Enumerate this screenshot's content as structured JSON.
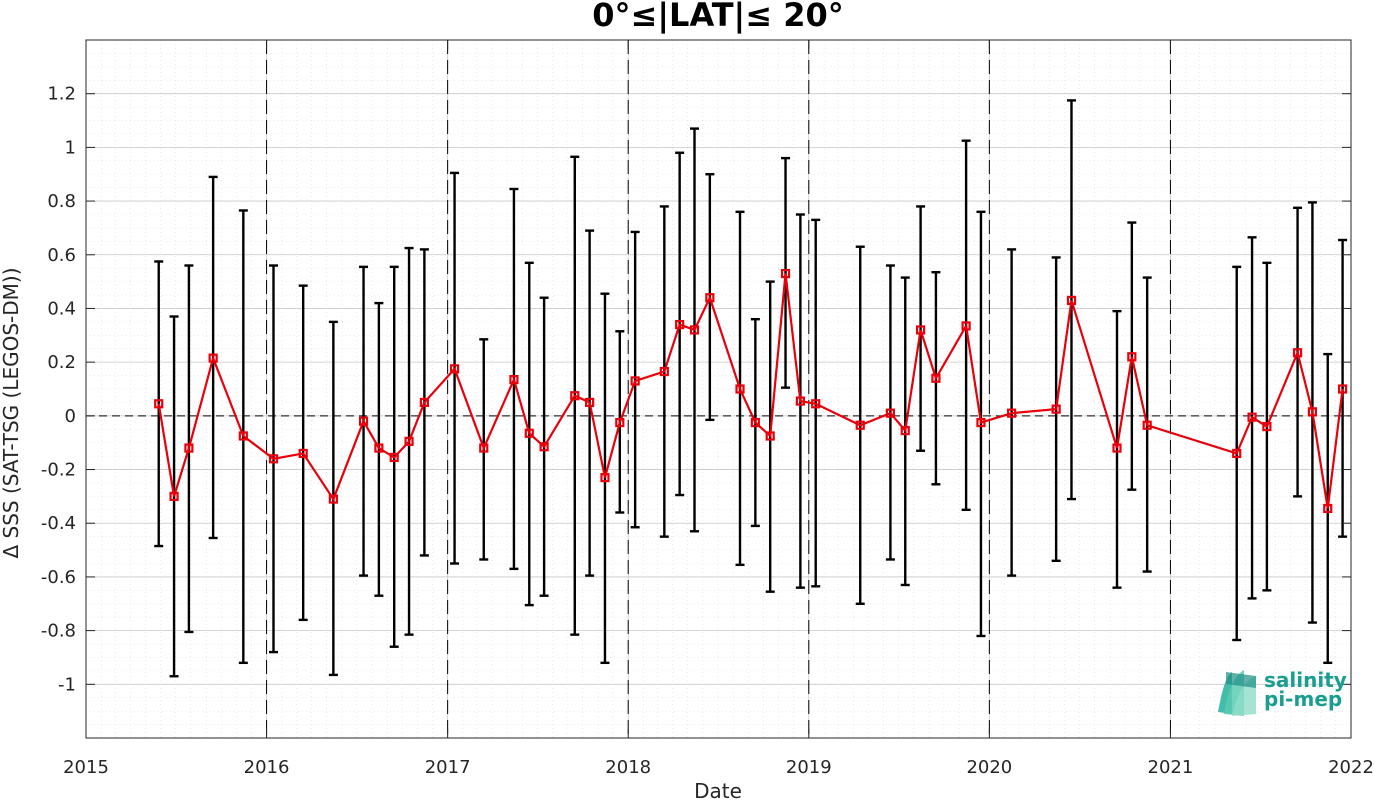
{
  "chart_data": {
    "type": "scatter",
    "title": "0°≤|LAT|≤ 20°",
    "xlabel": "Date",
    "ylabel": "Δ SSS (SAT-TSG (LEGOS-DM))",
    "xlim": [
      "2015-01-01",
      "2022-01-01"
    ],
    "ylim": [
      -1.2,
      1.4
    ],
    "x_ticks": [
      "2015",
      "2016",
      "2017",
      "2018",
      "2019",
      "2020",
      "2021",
      "2022"
    ],
    "y_ticks": [
      "-1",
      "-0.8",
      "-0.6",
      "-0.4",
      "-0.2",
      "0",
      "0.2",
      "0.4",
      "0.6",
      "0.8",
      "1",
      "1.2"
    ],
    "grid": true,
    "year_separators": true,
    "zero_line": true,
    "series": [
      {
        "color": "#e8000b",
        "marker": "square",
        "errorbar_color": "#000000",
        "points": [
          {
            "date": "2015-05-28",
            "y": 0.045,
            "lo": -0.485,
            "hi": 0.575
          },
          {
            "date": "2015-06-28",
            "y": -0.3,
            "lo": -0.97,
            "hi": 0.37
          },
          {
            "date": "2015-07-28",
            "y": -0.12,
            "lo": -0.805,
            "hi": 0.56
          },
          {
            "date": "2015-09-15",
            "y": 0.215,
            "lo": -0.455,
            "hi": 0.89
          },
          {
            "date": "2015-11-15",
            "y": -0.075,
            "lo": -0.92,
            "hi": 0.765
          },
          {
            "date": "2016-01-15",
            "y": -0.16,
            "lo": -0.88,
            "hi": 0.56
          },
          {
            "date": "2016-03-15",
            "y": -0.14,
            "lo": -0.76,
            "hi": 0.485
          },
          {
            "date": "2016-05-15",
            "y": -0.31,
            "lo": -0.965,
            "hi": 0.35
          },
          {
            "date": "2016-07-15",
            "y": -0.02,
            "lo": -0.595,
            "hi": 0.555
          },
          {
            "date": "2016-08-15",
            "y": -0.12,
            "lo": -0.67,
            "hi": 0.42
          },
          {
            "date": "2016-09-15",
            "y": -0.155,
            "lo": -0.86,
            "hi": 0.555
          },
          {
            "date": "2016-10-15",
            "y": -0.095,
            "lo": -0.815,
            "hi": 0.625
          },
          {
            "date": "2016-11-15",
            "y": 0.05,
            "lo": -0.52,
            "hi": 0.62
          },
          {
            "date": "2017-01-15",
            "y": 0.175,
            "lo": -0.55,
            "hi": 0.905
          },
          {
            "date": "2017-03-15",
            "y": -0.12,
            "lo": -0.535,
            "hi": 0.285
          },
          {
            "date": "2017-05-15",
            "y": 0.135,
            "lo": -0.57,
            "hi": 0.845
          },
          {
            "date": "2017-06-15",
            "y": -0.065,
            "lo": -0.705,
            "hi": 0.57
          },
          {
            "date": "2017-07-15",
            "y": -0.115,
            "lo": -0.67,
            "hi": 0.44
          },
          {
            "date": "2017-09-15",
            "y": 0.075,
            "lo": -0.815,
            "hi": 0.965
          },
          {
            "date": "2017-10-15",
            "y": 0.05,
            "lo": -0.595,
            "hi": 0.69
          },
          {
            "date": "2017-11-15",
            "y": -0.23,
            "lo": -0.92,
            "hi": 0.455
          },
          {
            "date": "2017-12-15",
            "y": -0.025,
            "lo": -0.36,
            "hi": 0.315
          },
          {
            "date": "2018-01-15",
            "y": 0.13,
            "lo": -0.415,
            "hi": 0.685
          },
          {
            "date": "2018-03-15",
            "y": 0.165,
            "lo": -0.45,
            "hi": 0.78
          },
          {
            "date": "2018-04-15",
            "y": 0.34,
            "lo": -0.295,
            "hi": 0.98
          },
          {
            "date": "2018-05-15",
            "y": 0.32,
            "lo": -0.43,
            "hi": 1.07
          },
          {
            "date": "2018-06-15",
            "y": 0.44,
            "lo": -0.015,
            "hi": 0.9
          },
          {
            "date": "2018-08-15",
            "y": 0.1,
            "lo": -0.555,
            "hi": 0.76
          },
          {
            "date": "2018-09-15",
            "y": -0.025,
            "lo": -0.41,
            "hi": 0.36
          },
          {
            "date": "2018-10-15",
            "y": -0.075,
            "lo": -0.655,
            "hi": 0.5
          },
          {
            "date": "2018-11-15",
            "y": 0.53,
            "lo": 0.105,
            "hi": 0.96
          },
          {
            "date": "2018-12-15",
            "y": 0.055,
            "lo": -0.64,
            "hi": 0.75
          },
          {
            "date": "2019-01-15",
            "y": 0.045,
            "lo": -0.635,
            "hi": 0.73
          },
          {
            "date": "2019-04-15",
            "y": -0.035,
            "lo": -0.7,
            "hi": 0.63
          },
          {
            "date": "2019-06-15",
            "y": 0.01,
            "lo": -0.535,
            "hi": 0.56
          },
          {
            "date": "2019-07-15",
            "y": -0.055,
            "lo": -0.63,
            "hi": 0.515
          },
          {
            "date": "2019-08-15",
            "y": 0.32,
            "lo": -0.13,
            "hi": 0.78
          },
          {
            "date": "2019-09-15",
            "y": 0.14,
            "lo": -0.255,
            "hi": 0.535
          },
          {
            "date": "2019-11-15",
            "y": 0.335,
            "lo": -0.35,
            "hi": 1.025
          },
          {
            "date": "2019-12-15",
            "y": -0.025,
            "lo": -0.82,
            "hi": 0.76
          },
          {
            "date": "2020-02-15",
            "y": 0.01,
            "lo": -0.595,
            "hi": 0.62
          },
          {
            "date": "2020-05-15",
            "y": 0.025,
            "lo": -0.54,
            "hi": 0.59
          },
          {
            "date": "2020-06-15",
            "y": 0.43,
            "lo": -0.31,
            "hi": 1.175
          },
          {
            "date": "2020-09-15",
            "y": -0.12,
            "lo": -0.64,
            "hi": 0.39
          },
          {
            "date": "2020-10-15",
            "y": 0.22,
            "lo": -0.275,
            "hi": 0.72
          },
          {
            "date": "2020-11-15",
            "y": -0.035,
            "lo": -0.58,
            "hi": 0.515
          },
          {
            "date": "2021-05-15",
            "y": -0.14,
            "lo": -0.835,
            "hi": 0.555
          },
          {
            "date": "2021-06-15",
            "y": -0.005,
            "lo": -0.68,
            "hi": 0.665
          },
          {
            "date": "2021-07-15",
            "y": -0.04,
            "lo": -0.65,
            "hi": 0.57
          },
          {
            "date": "2021-09-15",
            "y": 0.235,
            "lo": -0.3,
            "hi": 0.775
          },
          {
            "date": "2021-10-15",
            "y": 0.015,
            "lo": -0.77,
            "hi": 0.795
          },
          {
            "date": "2021-11-15",
            "y": -0.345,
            "lo": -0.92,
            "hi": 0.23
          },
          {
            "date": "2021-12-15",
            "y": 0.1,
            "lo": -0.45,
            "hi": 0.655
          }
        ]
      }
    ]
  },
  "logo": {
    "line1": "salinity",
    "line2": "pi-mep"
  }
}
